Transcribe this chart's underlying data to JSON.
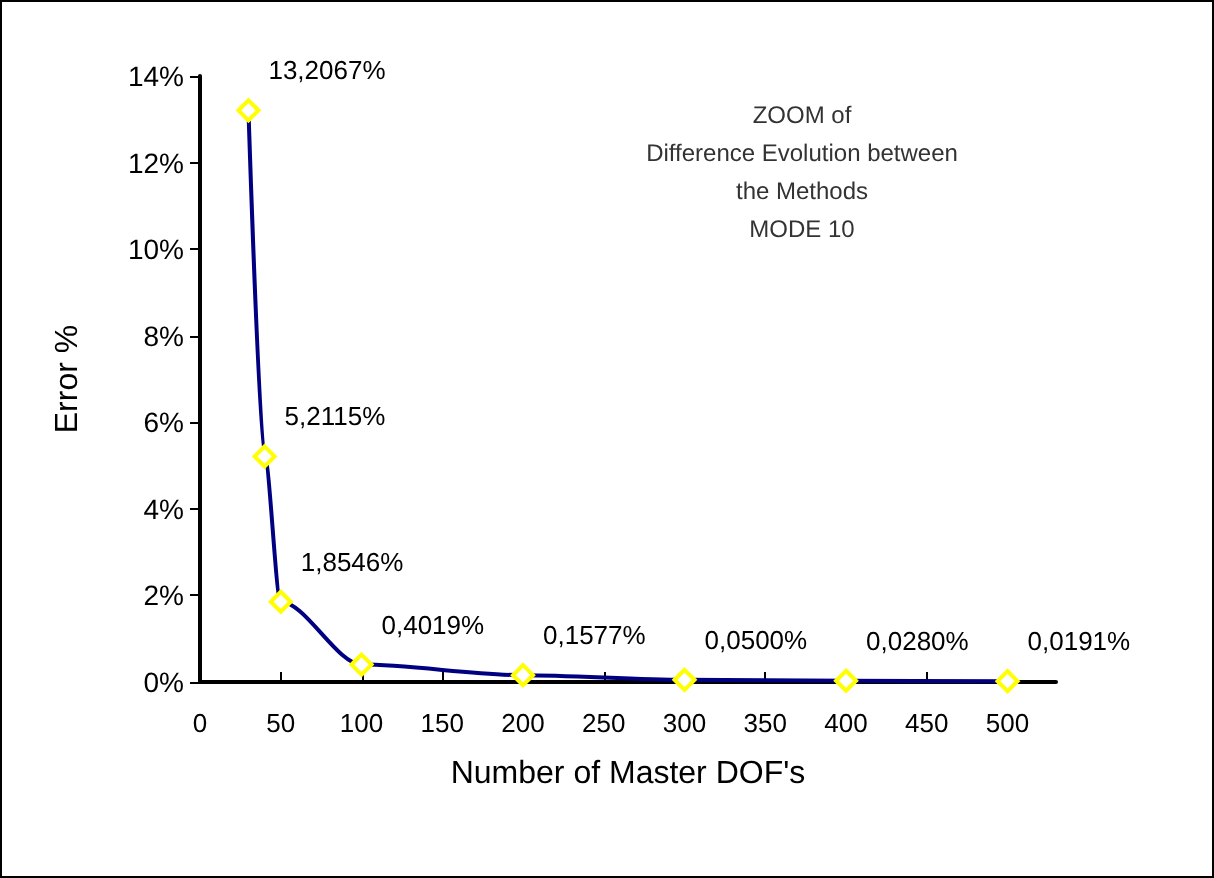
{
  "chart_data": {
    "type": "line",
    "title": "ZOOM of\nDifference Evolution between\nthe Methods\nMODE 10",
    "xlabel": "Number of Master DOF's",
    "ylabel": "Error %",
    "x": [
      30,
      40,
      50,
      100,
      200,
      300,
      400,
      500
    ],
    "series": [
      {
        "color": "#000080",
        "values": [
          13.2067,
          5.2115,
          1.8546,
          0.4019,
          0.1577,
          0.05,
          0.028,
          0.0191
        ],
        "value_labels": [
          "13,2067%",
          "5,2115%",
          "1,8546%",
          "0,4019%",
          "0,1577%",
          "0,0500%",
          "0,0280%",
          "0,0191%"
        ]
      }
    ],
    "xlim": [
      0,
      530
    ],
    "xticks": [
      0,
      50,
      100,
      150,
      200,
      250,
      300,
      350,
      400,
      450,
      500
    ],
    "ylim": [
      0,
      14
    ],
    "yticks": [
      {
        "value": 0,
        "label": "0%"
      },
      {
        "value": 2,
        "label": "2%"
      },
      {
        "value": 4,
        "label": "4%"
      },
      {
        "value": 6,
        "label": "6%"
      },
      {
        "value": 8,
        "label": "8%"
      },
      {
        "value": 10,
        "label": "10%"
      },
      {
        "value": 12,
        "label": "12%"
      },
      {
        "value": 14,
        "label": "14%"
      }
    ],
    "grid": false,
    "marker": "diamond",
    "line_style": "solid"
  }
}
